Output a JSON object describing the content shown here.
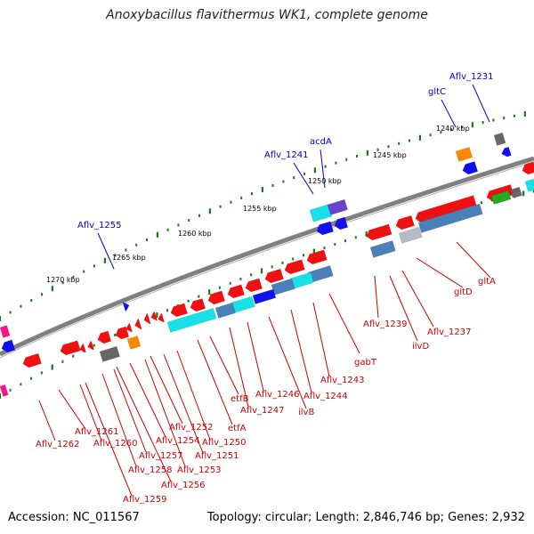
{
  "title": "Anoxybacillus flavithermus WK1, complete genome",
  "footer": {
    "accession": "Accession: NC_011567",
    "summary": "Topology: circular; Length: 2,846,746 bp; Genes: 2,932"
  },
  "colors": {
    "backbone": "#808080",
    "tick": "#1a7a1a",
    "label_blue": "#0000cc",
    "label_red": "#cc0000",
    "red": "#ee1111",
    "cyan": "#18e0e8",
    "steelblue": "#4a80b8",
    "blue": "#1111ee",
    "orange": "#ff8800",
    "gray": "#666666",
    "green": "#22aa22",
    "magenta": "#ff1188",
    "purple": "#6644cc",
    "lightgray": "#b8b8c8"
  },
  "kbp_labels": [
    "1240 kbp",
    "1245 kbp",
    "1250 kbp",
    "1255 kbp",
    "1260 kbp",
    "1265 kbp",
    "1270 kbp"
  ],
  "labels_outer": [
    "Aflv_1231",
    "gltC",
    "acdA",
    "Aflv_1241",
    "Aflv_1255"
  ],
  "labels_inner": [
    "gltA",
    "gltD",
    "Aflv_1237",
    "ilvD",
    "Aflv_1239",
    "gabT",
    "Aflv_1243",
    "Aflv_1244",
    "ilvB",
    "Aflv_1246",
    "Aflv_1247",
    "etfB",
    "etfA",
    "Aflv_1250",
    "Aflv_1251",
    "Aflv_1252",
    "Aflv_1253",
    "Aflv_1254",
    "Aflv_1256",
    "Aflv_1257",
    "Aflv_1258",
    "Aflv_1259",
    "Aflv_1260",
    "Aflv_1261",
    "Aflv_1262"
  ]
}
